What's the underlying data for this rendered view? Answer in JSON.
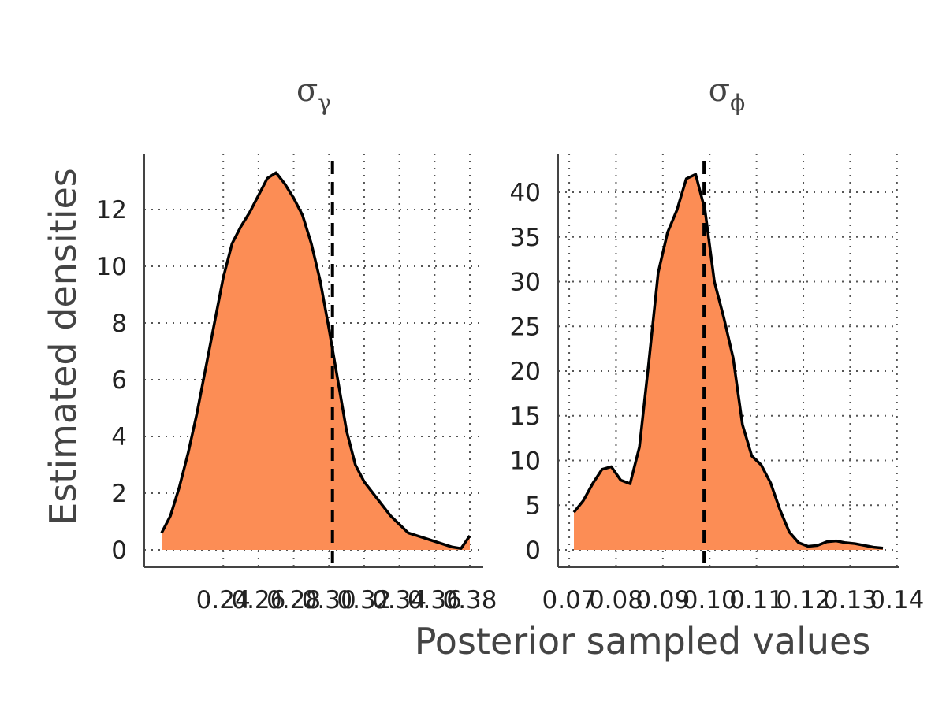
{
  "colors": {
    "fill": "#FC8D55",
    "outline": "#000000",
    "axis_text": "#444444"
  },
  "shared_labels": {
    "ylabel": "Estimated densities",
    "xlabel": "Posterior sampled values"
  },
  "chart_data": [
    {
      "type": "area",
      "title": "σ",
      "title_subscript": "γ",
      "grid": true,
      "xlim": [
        0.198,
        0.38
      ],
      "ylim": [
        0,
        13.4
      ],
      "x_ticks": [
        0.24,
        0.26,
        0.28,
        0.3,
        0.32,
        0.34,
        0.36,
        0.38
      ],
      "x_tick_labels": [
        "0.24",
        "0.26",
        "0.28",
        "0.30",
        "0.32",
        "0.34",
        "0.36",
        "0.38"
      ],
      "y_ticks": [
        0,
        2,
        4,
        6,
        8,
        10,
        12
      ],
      "y_tick_labels": [
        "0",
        "2",
        "4",
        "6",
        "8",
        "10",
        "12"
      ],
      "reference_x": 0.302,
      "x": [
        0.205,
        0.21,
        0.215,
        0.22,
        0.225,
        0.23,
        0.235,
        0.24,
        0.245,
        0.25,
        0.255,
        0.26,
        0.265,
        0.27,
        0.275,
        0.28,
        0.285,
        0.29,
        0.295,
        0.3,
        0.305,
        0.31,
        0.315,
        0.32,
        0.325,
        0.33,
        0.335,
        0.34,
        0.345,
        0.35,
        0.355,
        0.36,
        0.365,
        0.37,
        0.375,
        0.38
      ],
      "y": [
        0.6,
        1.2,
        2.2,
        3.4,
        4.8,
        6.4,
        8.0,
        9.6,
        10.8,
        11.4,
        11.9,
        12.5,
        13.1,
        13.3,
        12.9,
        12.4,
        11.8,
        10.8,
        9.5,
        7.8,
        6.0,
        4.2,
        3.0,
        2.4,
        2.0,
        1.6,
        1.2,
        0.9,
        0.6,
        0.5,
        0.4,
        0.3,
        0.2,
        0.1,
        0.05,
        0.5
      ]
    },
    {
      "type": "area",
      "title": "σ",
      "title_subscript": "ϕ",
      "grid": true,
      "xlim": [
        0.0693,
        0.14
      ],
      "ylim": [
        0,
        44
      ],
      "x_ticks": [
        0.07,
        0.08,
        0.09,
        0.1,
        0.11,
        0.12,
        0.13,
        0.14
      ],
      "x_tick_labels": [
        "0.07",
        "0.08",
        "0.09",
        "0.10",
        "0.11",
        "0.12",
        "0.13",
        "0.14"
      ],
      "y_ticks": [
        0,
        5,
        10,
        15,
        20,
        25,
        30,
        35,
        40
      ],
      "y_tick_labels": [
        "0",
        "5",
        "10",
        "15",
        "20",
        "25",
        "30",
        "35",
        "40"
      ],
      "reference_x": 0.0988,
      "x": [
        0.071,
        0.073,
        0.075,
        0.077,
        0.079,
        0.081,
        0.083,
        0.085,
        0.087,
        0.089,
        0.091,
        0.093,
        0.095,
        0.097,
        0.099,
        0.101,
        0.103,
        0.105,
        0.107,
        0.109,
        0.111,
        0.113,
        0.115,
        0.117,
        0.119,
        0.121,
        0.123,
        0.125,
        0.127,
        0.129,
        0.131,
        0.133,
        0.135,
        0.137
      ],
      "y": [
        4.2,
        5.5,
        7.4,
        9.0,
        9.3,
        7.8,
        7.4,
        11.5,
        21.0,
        31.0,
        35.5,
        38.0,
        41.5,
        42.0,
        38.0,
        30.0,
        26.0,
        21.5,
        14.0,
        10.5,
        9.5,
        7.5,
        4.5,
        2.0,
        0.8,
        0.4,
        0.5,
        0.9,
        1.0,
        0.8,
        0.7,
        0.5,
        0.3,
        0.2
      ]
    }
  ]
}
